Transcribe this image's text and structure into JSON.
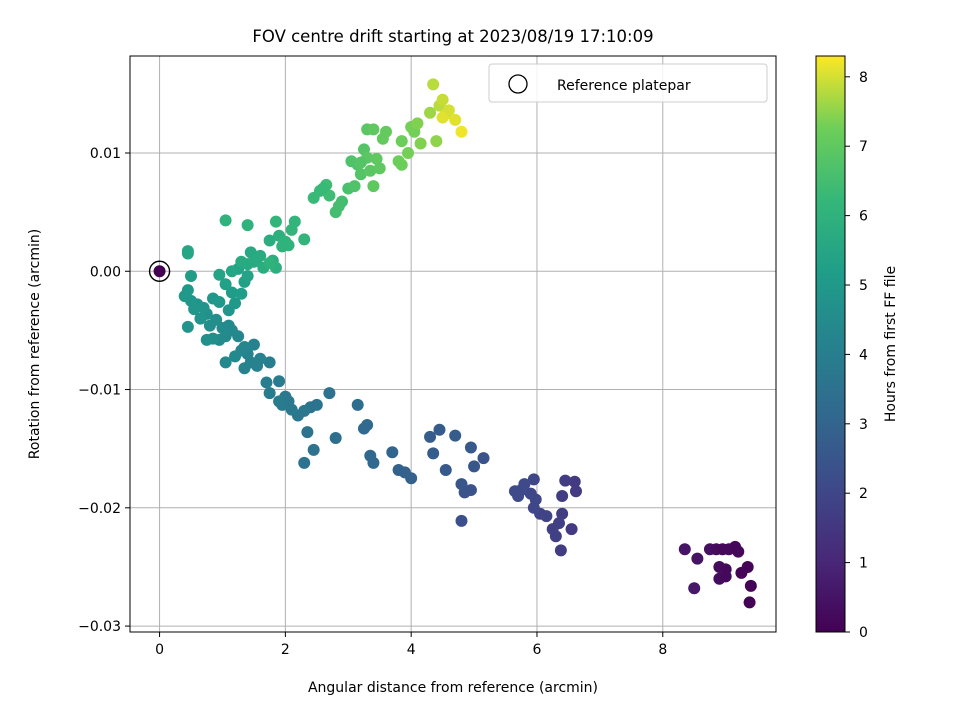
{
  "chart_data": {
    "type": "scatter",
    "title": "FOV centre drift starting at 2023/08/19 17:10:09",
    "xlabel": "Angular distance from reference (arcmin)",
    "ylabel": "Rotation from reference (arcmin)",
    "xlim": [
      -0.47,
      9.8
    ],
    "ylim": [
      -0.0305,
      0.0182
    ],
    "xticks": [
      0,
      2,
      4,
      6,
      8
    ],
    "xtick_labels": [
      "0",
      "2",
      "4",
      "6",
      "8"
    ],
    "yticks": [
      -0.03,
      -0.02,
      -0.01,
      0.0,
      0.01
    ],
    "ytick_labels": [
      "−0.03",
      "−0.02",
      "−0.01",
      "0.00",
      "0.01"
    ],
    "grid": true,
    "legend": {
      "placement": "top-right",
      "entries": [
        "Reference platepar"
      ]
    },
    "reference_point": {
      "x": 0,
      "y": 0
    },
    "colorbar": {
      "label": "Hours from first FF file",
      "range": [
        0,
        8.3
      ],
      "ticks": [
        0,
        1,
        2,
        3,
        4,
        5,
        6,
        7,
        8
      ],
      "tick_labels": [
        "0",
        "1",
        "2",
        "3",
        "4",
        "5",
        "6",
        "7",
        "8"
      ],
      "colormap": "viridis"
    },
    "points": [
      {
        "x": 8.35,
        "y": -0.0235,
        "c": 0.5
      },
      {
        "x": 8.5,
        "y": -0.0268,
        "c": 0.6
      },
      {
        "x": 8.55,
        "y": -0.0243,
        "c": 0.5
      },
      {
        "x": 8.75,
        "y": -0.0235,
        "c": 0.4
      },
      {
        "x": 8.85,
        "y": -0.0235,
        "c": 0.3
      },
      {
        "x": 8.9,
        "y": -0.025,
        "c": 0.3
      },
      {
        "x": 8.9,
        "y": -0.026,
        "c": 0.3
      },
      {
        "x": 8.95,
        "y": -0.0235,
        "c": 0.2
      },
      {
        "x": 9.0,
        "y": -0.0258,
        "c": 0.2
      },
      {
        "x": 9.0,
        "y": -0.0252,
        "c": 0.2
      },
      {
        "x": 9.05,
        "y": -0.0235,
        "c": 0.2
      },
      {
        "x": 9.15,
        "y": -0.0233,
        "c": 0.15
      },
      {
        "x": 9.2,
        "y": -0.0237,
        "c": 0.15
      },
      {
        "x": 9.25,
        "y": -0.0255,
        "c": 0.1
      },
      {
        "x": 9.35,
        "y": -0.025,
        "c": 0.1
      },
      {
        "x": 9.38,
        "y": -0.028,
        "c": 0.05
      },
      {
        "x": 9.4,
        "y": -0.0266,
        "c": 0.05
      },
      {
        "x": 6.6,
        "y": -0.0178,
        "c": 1.6
      },
      {
        "x": 6.62,
        "y": -0.0186,
        "c": 1.6
      },
      {
        "x": 6.45,
        "y": -0.0177,
        "c": 1.7
      },
      {
        "x": 6.4,
        "y": -0.019,
        "c": 1.7
      },
      {
        "x": 6.55,
        "y": -0.0218,
        "c": 1.6
      },
      {
        "x": 6.4,
        "y": -0.0205,
        "c": 1.7
      },
      {
        "x": 6.35,
        "y": -0.0213,
        "c": 1.8
      },
      {
        "x": 6.3,
        "y": -0.0224,
        "c": 1.8
      },
      {
        "x": 6.25,
        "y": -0.0218,
        "c": 1.8
      },
      {
        "x": 6.38,
        "y": -0.0236,
        "c": 1.7
      },
      {
        "x": 6.15,
        "y": -0.0207,
        "c": 1.9
      },
      {
        "x": 6.05,
        "y": -0.0205,
        "c": 1.9
      },
      {
        "x": 5.95,
        "y": -0.02,
        "c": 2.0
      },
      {
        "x": 5.98,
        "y": -0.0193,
        "c": 2.0
      },
      {
        "x": 5.9,
        "y": -0.0188,
        "c": 2.0
      },
      {
        "x": 5.95,
        "y": -0.0176,
        "c": 2.0
      },
      {
        "x": 5.8,
        "y": -0.018,
        "c": 2.1
      },
      {
        "x": 5.75,
        "y": -0.0185,
        "c": 2.1
      },
      {
        "x": 5.65,
        "y": -0.0186,
        "c": 2.1
      },
      {
        "x": 5.7,
        "y": -0.019,
        "c": 2.1
      },
      {
        "x": 5.15,
        "y": -0.0158,
        "c": 2.4
      },
      {
        "x": 5.0,
        "y": -0.0165,
        "c": 2.5
      },
      {
        "x": 4.95,
        "y": -0.0149,
        "c": 2.6
      },
      {
        "x": 4.95,
        "y": -0.0185,
        "c": 2.4
      },
      {
        "x": 4.85,
        "y": -0.0187,
        "c": 2.4
      },
      {
        "x": 4.8,
        "y": -0.018,
        "c": 2.5
      },
      {
        "x": 4.8,
        "y": -0.0211,
        "c": 2.3
      },
      {
        "x": 4.7,
        "y": -0.0139,
        "c": 2.7
      },
      {
        "x": 4.55,
        "y": -0.0168,
        "c": 2.6
      },
      {
        "x": 4.45,
        "y": -0.0134,
        "c": 2.7
      },
      {
        "x": 4.35,
        "y": -0.0154,
        "c": 2.7
      },
      {
        "x": 4.3,
        "y": -0.014,
        "c": 2.7
      },
      {
        "x": 4.0,
        "y": -0.0175,
        "c": 2.9
      },
      {
        "x": 3.9,
        "y": -0.017,
        "c": 2.9
      },
      {
        "x": 3.8,
        "y": -0.0168,
        "c": 2.9
      },
      {
        "x": 3.7,
        "y": -0.0153,
        "c": 3.0
      },
      {
        "x": 3.4,
        "y": -0.0162,
        "c": 3.1
      },
      {
        "x": 3.35,
        "y": -0.0156,
        "c": 3.1
      },
      {
        "x": 3.3,
        "y": -0.013,
        "c": 3.2
      },
      {
        "x": 3.25,
        "y": -0.0133,
        "c": 3.2
      },
      {
        "x": 3.15,
        "y": -0.0113,
        "c": 3.3
      },
      {
        "x": 2.8,
        "y": -0.0141,
        "c": 3.4
      },
      {
        "x": 2.7,
        "y": -0.0103,
        "c": 3.5
      },
      {
        "x": 2.5,
        "y": -0.0113,
        "c": 3.6
      },
      {
        "x": 2.45,
        "y": -0.0151,
        "c": 3.5
      },
      {
        "x": 2.4,
        "y": -0.0115,
        "c": 3.6
      },
      {
        "x": 2.35,
        "y": -0.0136,
        "c": 3.6
      },
      {
        "x": 2.3,
        "y": -0.0162,
        "c": 3.5
      },
      {
        "x": 2.3,
        "y": -0.0118,
        "c": 3.7
      },
      {
        "x": 2.2,
        "y": -0.0122,
        "c": 3.7
      },
      {
        "x": 2.1,
        "y": -0.0117,
        "c": 3.8
      },
      {
        "x": 2.05,
        "y": -0.011,
        "c": 3.8
      },
      {
        "x": 2.0,
        "y": -0.0106,
        "c": 3.8
      },
      {
        "x": 1.95,
        "y": -0.0113,
        "c": 3.8
      },
      {
        "x": 1.9,
        "y": -0.011,
        "c": 3.9
      },
      {
        "x": 1.9,
        "y": -0.0093,
        "c": 3.9
      },
      {
        "x": 1.75,
        "y": -0.0103,
        "c": 3.9
      },
      {
        "x": 1.7,
        "y": -0.0094,
        "c": 4.0
      },
      {
        "x": 1.75,
        "y": -0.0077,
        "c": 4.0
      },
      {
        "x": 1.6,
        "y": -0.0074,
        "c": 4.1
      },
      {
        "x": 1.55,
        "y": -0.008,
        "c": 4.1
      },
      {
        "x": 1.5,
        "y": -0.0062,
        "c": 4.1
      },
      {
        "x": 1.45,
        "y": -0.0077,
        "c": 4.2
      },
      {
        "x": 1.4,
        "y": -0.007,
        "c": 4.2
      },
      {
        "x": 1.35,
        "y": -0.0082,
        "c": 4.2
      },
      {
        "x": 1.35,
        "y": -0.0064,
        "c": 4.3
      },
      {
        "x": 1.3,
        "y": -0.0067,
        "c": 4.3
      },
      {
        "x": 1.25,
        "y": -0.0055,
        "c": 4.3
      },
      {
        "x": 1.2,
        "y": -0.0072,
        "c": 4.4
      },
      {
        "x": 1.15,
        "y": -0.005,
        "c": 4.4
      },
      {
        "x": 1.1,
        "y": -0.0046,
        "c": 4.4
      },
      {
        "x": 1.05,
        "y": -0.0077,
        "c": 4.4
      },
      {
        "x": 1.05,
        "y": -0.0055,
        "c": 4.5
      },
      {
        "x": 1.0,
        "y": -0.0048,
        "c": 4.5
      },
      {
        "x": 0.95,
        "y": -0.0058,
        "c": 4.5
      },
      {
        "x": 0.9,
        "y": -0.0041,
        "c": 4.6
      },
      {
        "x": 0.85,
        "y": -0.0057,
        "c": 4.6
      },
      {
        "x": 0.8,
        "y": -0.0046,
        "c": 4.6
      },
      {
        "x": 0.75,
        "y": -0.0058,
        "c": 4.7
      },
      {
        "x": 0.75,
        "y": -0.0036,
        "c": 4.7
      },
      {
        "x": 0.7,
        "y": -0.0031,
        "c": 4.8
      },
      {
        "x": 0.65,
        "y": -0.004,
        "c": 4.8
      },
      {
        "x": 0.6,
        "y": -0.0028,
        "c": 4.8
      },
      {
        "x": 0.55,
        "y": -0.0032,
        "c": 4.9
      },
      {
        "x": 0.5,
        "y": -0.0025,
        "c": 4.9
      },
      {
        "x": 0.45,
        "y": -0.0016,
        "c": 5.0
      },
      {
        "x": 0.4,
        "y": -0.0021,
        "c": 5.0
      },
      {
        "x": 0.5,
        "y": -0.0004,
        "c": 5.1
      },
      {
        "x": 0.45,
        "y": -0.0047,
        "c": 4.8
      },
      {
        "x": 0.85,
        "y": -0.0023,
        "c": 4.9
      },
      {
        "x": 0.95,
        "y": -0.0026,
        "c": 5.0
      },
      {
        "x": 1.1,
        "y": -0.0033,
        "c": 4.9
      },
      {
        "x": 1.2,
        "y": -0.0027,
        "c": 5.0
      },
      {
        "x": 1.15,
        "y": -0.0018,
        "c": 5.1
      },
      {
        "x": 1.3,
        "y": -0.0019,
        "c": 5.2
      },
      {
        "x": 1.35,
        "y": -0.0009,
        "c": 5.3
      },
      {
        "x": 1.4,
        "y": -0.0004,
        "c": 5.4
      },
      {
        "x": 1.25,
        "y": 0.0002,
        "c": 5.4
      },
      {
        "x": 1.15,
        "y": 0.0,
        "c": 5.5
      },
      {
        "x": 1.05,
        "y": -0.0011,
        "c": 5.3
      },
      {
        "x": 0.95,
        "y": -0.0003,
        "c": 5.4
      },
      {
        "x": 0.45,
        "y": 0.0017,
        "c": 5.5
      },
      {
        "x": 0.45,
        "y": 0.0015,
        "c": 5.5
      },
      {
        "x": 1.4,
        "y": 0.0006,
        "c": 5.6
      },
      {
        "x": 1.45,
        "y": 0.0016,
        "c": 5.6
      },
      {
        "x": 1.5,
        "y": 0.0008,
        "c": 5.7
      },
      {
        "x": 1.55,
        "y": 0.0011,
        "c": 5.7
      },
      {
        "x": 1.6,
        "y": 0.0013,
        "c": 5.7
      },
      {
        "x": 1.65,
        "y": 0.0003,
        "c": 5.8
      },
      {
        "x": 1.75,
        "y": 0.0026,
        "c": 5.8
      },
      {
        "x": 1.8,
        "y": 0.0009,
        "c": 5.8
      },
      {
        "x": 1.85,
        "y": 0.0003,
        "c": 5.9
      },
      {
        "x": 1.9,
        "y": 0.003,
        "c": 5.9
      },
      {
        "x": 1.95,
        "y": 0.0021,
        "c": 6.0
      },
      {
        "x": 2.0,
        "y": 0.0025,
        "c": 6.0
      },
      {
        "x": 2.05,
        "y": 0.0022,
        "c": 6.0
      },
      {
        "x": 2.1,
        "y": 0.0035,
        "c": 6.1
      },
      {
        "x": 2.15,
        "y": 0.0042,
        "c": 6.1
      },
      {
        "x": 2.3,
        "y": 0.0027,
        "c": 6.1
      },
      {
        "x": 1.05,
        "y": 0.0043,
        "c": 6.0
      },
      {
        "x": 1.4,
        "y": 0.0039,
        "c": 6.0
      },
      {
        "x": 1.85,
        "y": 0.0042,
        "c": 6.1
      },
      {
        "x": 1.75,
        "y": 0.0007,
        "c": 6.0
      },
      {
        "x": 1.3,
        "y": 0.0008,
        "c": 5.7
      },
      {
        "x": 2.45,
        "y": 0.0062,
        "c": 6.3
      },
      {
        "x": 2.55,
        "y": 0.0068,
        "c": 6.3
      },
      {
        "x": 2.65,
        "y": 0.0073,
        "c": 6.4
      },
      {
        "x": 2.7,
        "y": 0.0064,
        "c": 6.4
      },
      {
        "x": 2.8,
        "y": 0.005,
        "c": 6.5
      },
      {
        "x": 2.85,
        "y": 0.0055,
        "c": 6.5
      },
      {
        "x": 2.9,
        "y": 0.0059,
        "c": 6.5
      },
      {
        "x": 3.0,
        "y": 0.007,
        "c": 6.6
      },
      {
        "x": 3.05,
        "y": 0.0093,
        "c": 6.7
      },
      {
        "x": 3.1,
        "y": 0.0072,
        "c": 6.7
      },
      {
        "x": 3.15,
        "y": 0.009,
        "c": 6.7
      },
      {
        "x": 3.2,
        "y": 0.0082,
        "c": 6.8
      },
      {
        "x": 3.25,
        "y": 0.0103,
        "c": 6.8
      },
      {
        "x": 3.3,
        "y": 0.0096,
        "c": 6.9
      },
      {
        "x": 3.3,
        "y": 0.012,
        "c": 6.9
      },
      {
        "x": 3.35,
        "y": 0.0085,
        "c": 6.9
      },
      {
        "x": 3.4,
        "y": 0.0072,
        "c": 7.0
      },
      {
        "x": 3.4,
        "y": 0.012,
        "c": 7.0
      },
      {
        "x": 3.45,
        "y": 0.0095,
        "c": 7.0
      },
      {
        "x": 3.5,
        "y": 0.0087,
        "c": 7.0
      },
      {
        "x": 3.55,
        "y": 0.0112,
        "c": 7.1
      },
      {
        "x": 3.6,
        "y": 0.0118,
        "c": 7.1
      },
      {
        "x": 3.8,
        "y": 0.0093,
        "c": 7.2
      },
      {
        "x": 3.85,
        "y": 0.009,
        "c": 7.2
      },
      {
        "x": 3.85,
        "y": 0.011,
        "c": 7.2
      },
      {
        "x": 3.95,
        "y": 0.01,
        "c": 7.3
      },
      {
        "x": 4.0,
        "y": 0.0122,
        "c": 7.3
      },
      {
        "x": 4.05,
        "y": 0.0118,
        "c": 7.3
      },
      {
        "x": 4.1,
        "y": 0.0125,
        "c": 7.4
      },
      {
        "x": 4.15,
        "y": 0.0108,
        "c": 7.4
      },
      {
        "x": 4.3,
        "y": 0.0134,
        "c": 7.6
      },
      {
        "x": 4.35,
        "y": 0.0158,
        "c": 7.8
      },
      {
        "x": 4.4,
        "y": 0.011,
        "c": 7.5
      },
      {
        "x": 4.45,
        "y": 0.014,
        "c": 7.8
      },
      {
        "x": 4.5,
        "y": 0.0145,
        "c": 7.9
      },
      {
        "x": 4.55,
        "y": 0.0133,
        "c": 8.0
      },
      {
        "x": 4.6,
        "y": 0.0136,
        "c": 8.0
      },
      {
        "x": 4.7,
        "y": 0.0128,
        "c": 8.1
      },
      {
        "x": 4.8,
        "y": 0.0118,
        "c": 8.2
      },
      {
        "x": 4.5,
        "y": 0.013,
        "c": 8.1
      },
      {
        "x": 3.2,
        "y": 0.0092,
        "c": 6.8
      },
      {
        "x": 2.6,
        "y": 0.007,
        "c": 6.3
      },
      {
        "x": 0.0,
        "y": 0.0,
        "c": 0.0
      }
    ]
  }
}
